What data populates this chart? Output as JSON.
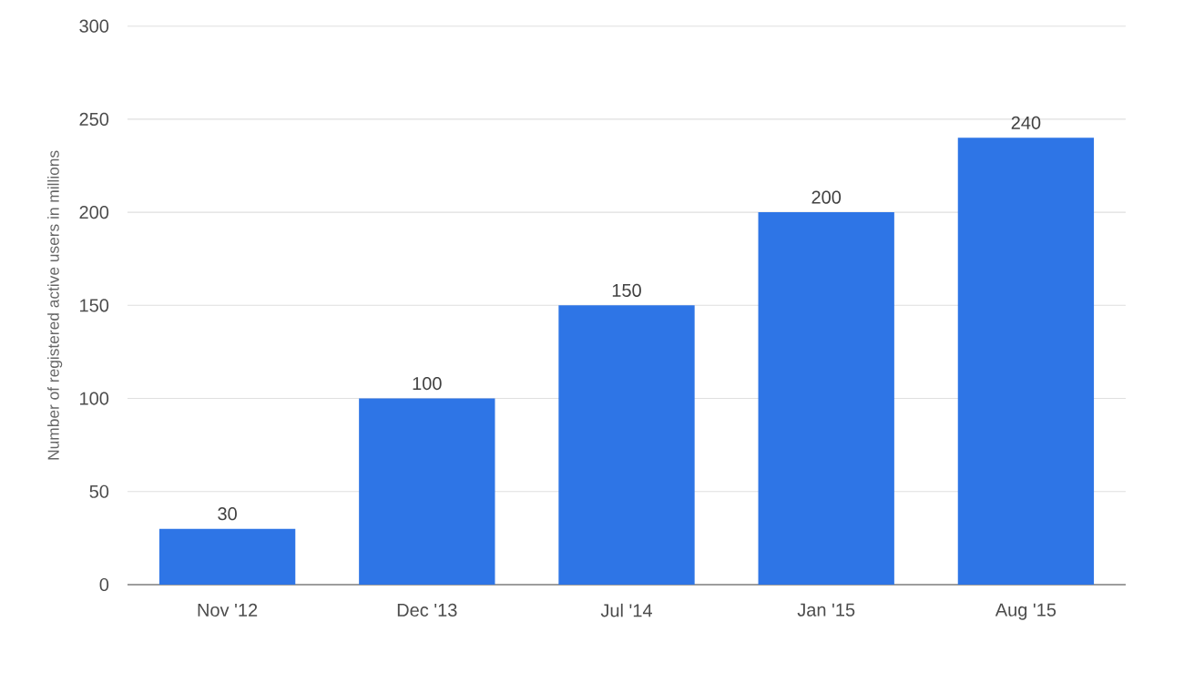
{
  "chart_data": {
    "type": "bar",
    "ylabel": "Number of registered active users in millions",
    "categories": [
      "Nov '12",
      "Dec '13",
      "Jul '14",
      "Jan '15",
      "Aug '15"
    ],
    "values": [
      30,
      100,
      150,
      200,
      240
    ],
    "color": "#2e75e6",
    "ylim": [
      0,
      300
    ],
    "yticks": [
      0,
      50,
      100,
      150,
      200,
      250,
      300
    ],
    "grid": "y",
    "data_labels": true
  }
}
